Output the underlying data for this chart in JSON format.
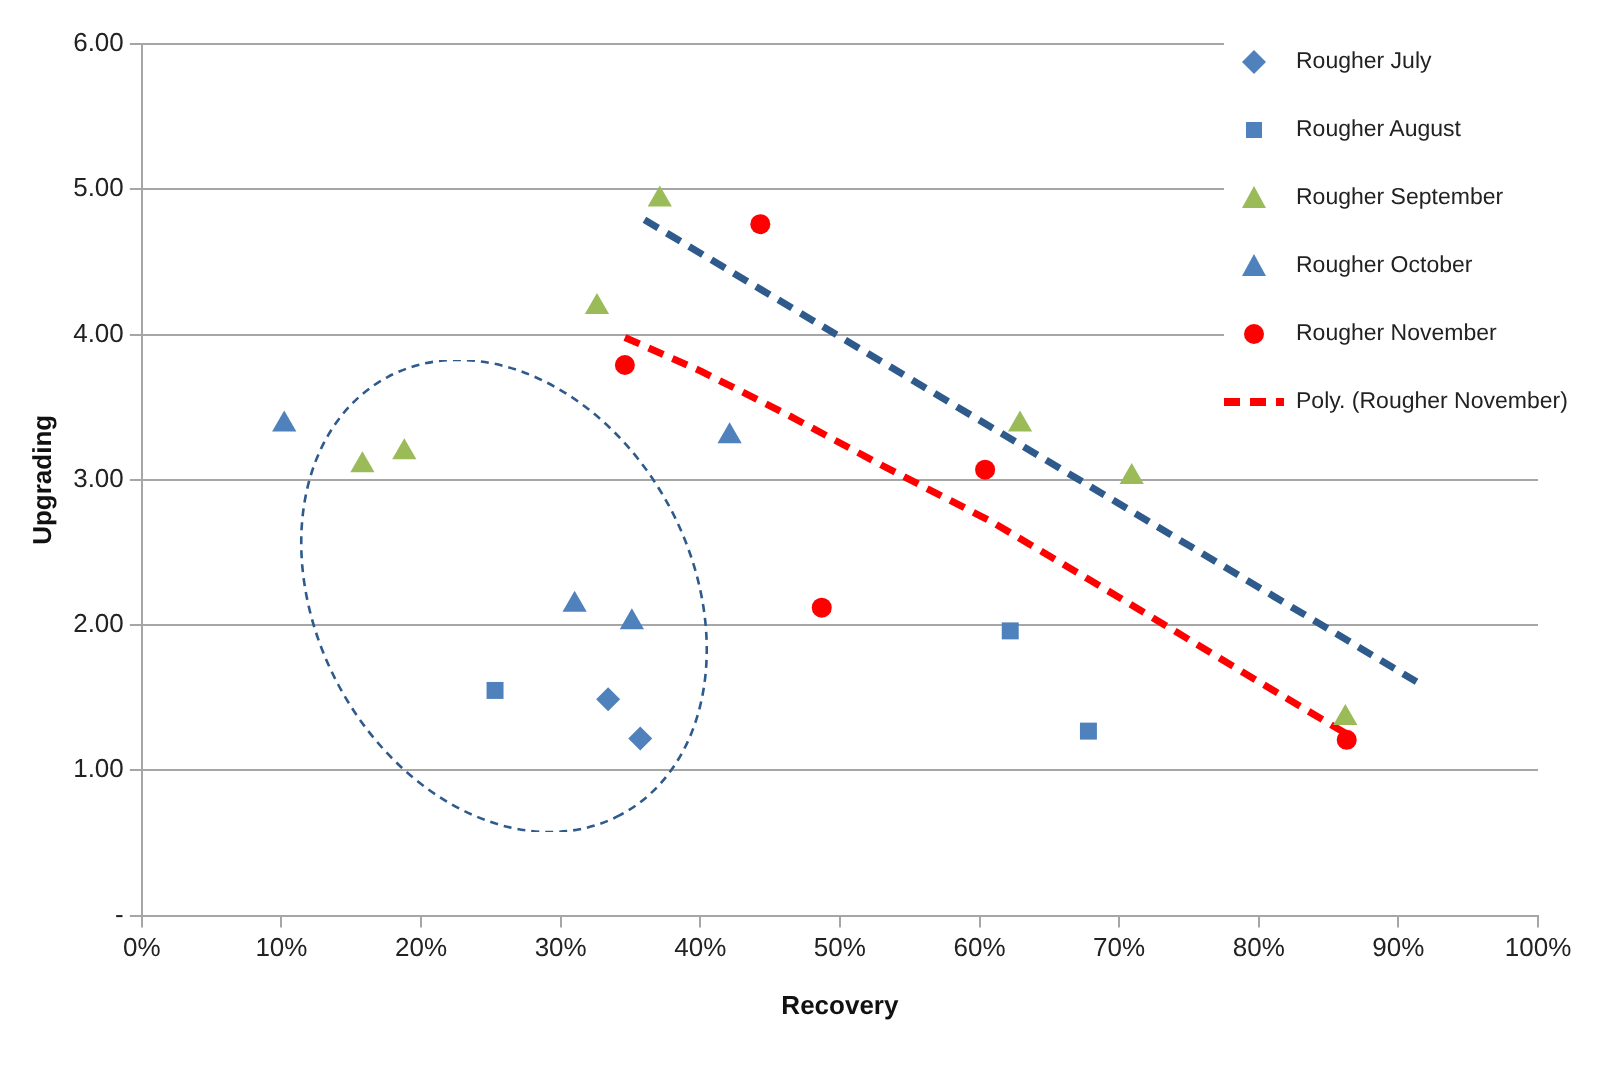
{
  "chart_data": {
    "type": "scatter",
    "xlabel": "Recovery",
    "ylabel": "Upgrading",
    "xlim": [
      0,
      100
    ],
    "xticks": [
      {
        "value": 0,
        "label": "0%"
      },
      {
        "value": 10,
        "label": "10%"
      },
      {
        "value": 20,
        "label": "20%"
      },
      {
        "value": 30,
        "label": "30%"
      },
      {
        "value": 40,
        "label": "40%"
      },
      {
        "value": 50,
        "label": "50%"
      },
      {
        "value": 60,
        "label": "60%"
      },
      {
        "value": 70,
        "label": "70%"
      },
      {
        "value": 80,
        "label": "80%"
      },
      {
        "value": 90,
        "label": "90%"
      },
      {
        "value": 100,
        "label": "100%"
      }
    ],
    "ylim": [
      0,
      6
    ],
    "yticks": [
      {
        "value": 0,
        "label": "-"
      },
      {
        "value": 1,
        "label": "1.00"
      },
      {
        "value": 2,
        "label": "2.00"
      },
      {
        "value": 3,
        "label": "3.00"
      },
      {
        "value": 4,
        "label": "4.00"
      },
      {
        "value": 5,
        "label": "5.00"
      },
      {
        "value": 6,
        "label": "6.00"
      }
    ],
    "grid": "y",
    "legend": "top right",
    "series": [
      {
        "name": "Rougher July",
        "color": "#4f81bd",
        "marker": "diamond",
        "x": [
          33.4,
          35.7
        ],
        "values": [
          1.49,
          1.22
        ]
      },
      {
        "name": "Rougher August",
        "color": "#4f81bd",
        "marker": "square",
        "x": [
          25.3,
          62.2,
          67.8
        ],
        "values": [
          1.55,
          1.96,
          1.27
        ]
      },
      {
        "name": "Rougher September",
        "color": "#9bbb59",
        "marker": "triangle",
        "x": [
          37.1,
          32.6,
          15.8,
          18.8,
          62.9,
          70.9,
          86.2
        ],
        "values": [
          4.93,
          4.19,
          3.1,
          3.19,
          3.38,
          3.02,
          1.36
        ]
      },
      {
        "name": "Rougher October",
        "color": "#4f81bd",
        "marker": "triangle",
        "x": [
          10.2,
          42.1,
          31.0,
          35.1
        ],
        "values": [
          3.38,
          3.3,
          2.14,
          2.02
        ]
      },
      {
        "name": "Rougher November",
        "color": "#ff0000",
        "marker": "circle",
        "x": [
          44.3,
          34.6,
          48.7,
          60.4,
          86.3
        ],
        "values": [
          4.76,
          3.79,
          2.12,
          3.07,
          1.21
        ]
      },
      {
        "name": "Poly. (Rougher November)",
        "type": "line",
        "color": "#ff0000",
        "line_style": "dashed",
        "marker": "none",
        "x": [
          34.6,
          40,
          46.2,
          53,
          60.9,
          70,
          80,
          86.3
        ],
        "values": [
          3.98,
          3.75,
          3.45,
          3.1,
          2.71,
          2.19,
          1.61,
          1.25
        ]
      },
      {
        "type": "line",
        "color": "#2e5a8c",
        "line_style": "dashed",
        "marker": "none",
        "x": [
          36.0,
          91.3
        ],
        "values": [
          4.79,
          1.61
        ]
      }
    ]
  }
}
